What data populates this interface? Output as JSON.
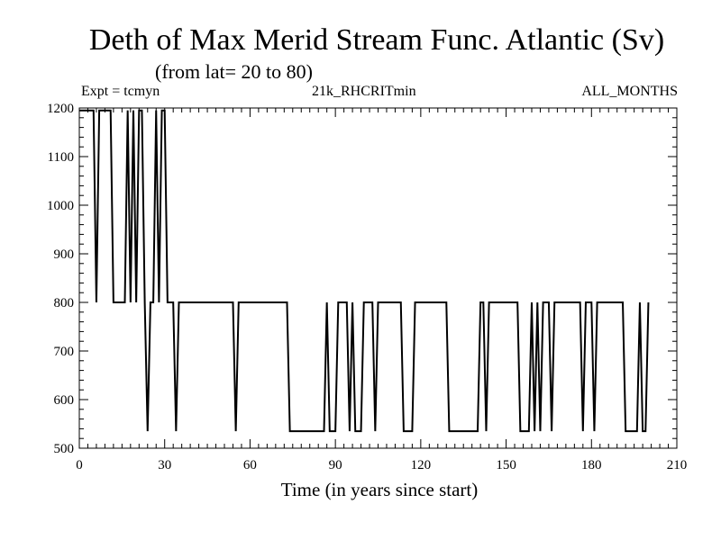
{
  "chart_data": {
    "type": "line",
    "title": "Deth of Max Merid Stream Func. Atlantic (Sv)",
    "subtitle": "(from lat= 20 to 80)",
    "header_left": "Expt = tcmyn",
    "header_center": "21k_RHCRITmin",
    "header_right": "ALL_MONTHS",
    "xlabel": "Time (in years since start)",
    "ylabel": "",
    "xlim": [
      0,
      210
    ],
    "ylim": [
      500,
      1200
    ],
    "xticks": [
      0,
      30,
      60,
      90,
      120,
      150,
      180,
      210
    ],
    "yticks": [
      500,
      600,
      700,
      800,
      900,
      1000,
      1100,
      1200
    ],
    "grid": false,
    "series": [
      {
        "name": "",
        "color": "#000000",
        "points": [
          [
            0,
            1195
          ],
          [
            5,
            1195
          ],
          [
            6,
            800
          ],
          [
            7,
            1195
          ],
          [
            11,
            1195
          ],
          [
            12,
            800
          ],
          [
            16,
            800
          ],
          [
            17,
            1195
          ],
          [
            18,
            800
          ],
          [
            19,
            1195
          ],
          [
            20,
            800
          ],
          [
            21,
            1195
          ],
          [
            22,
            1195
          ],
          [
            23,
            800
          ],
          [
            24,
            535
          ],
          [
            25,
            800
          ],
          [
            26,
            800
          ],
          [
            27,
            1195
          ],
          [
            28,
            800
          ],
          [
            29,
            1195
          ],
          [
            30,
            1195
          ],
          [
            31,
            800
          ],
          [
            33,
            800
          ],
          [
            34,
            535
          ],
          [
            35,
            800
          ],
          [
            54,
            800
          ],
          [
            55,
            535
          ],
          [
            56,
            800
          ],
          [
            73,
            800
          ],
          [
            74,
            535
          ],
          [
            86,
            535
          ],
          [
            87,
            800
          ],
          [
            88,
            535
          ],
          [
            90,
            535
          ],
          [
            91,
            800
          ],
          [
            94,
            800
          ],
          [
            95,
            535
          ],
          [
            96,
            800
          ],
          [
            97,
            535
          ],
          [
            99,
            535
          ],
          [
            100,
            800
          ],
          [
            103,
            800
          ],
          [
            104,
            535
          ],
          [
            105,
            800
          ],
          [
            113,
            800
          ],
          [
            114,
            535
          ],
          [
            117,
            535
          ],
          [
            118,
            800
          ],
          [
            129,
            800
          ],
          [
            130,
            535
          ],
          [
            140,
            535
          ],
          [
            141,
            800
          ],
          [
            142,
            800
          ],
          [
            143,
            535
          ],
          [
            144,
            800
          ],
          [
            154,
            800
          ],
          [
            155,
            535
          ],
          [
            158,
            535
          ],
          [
            159,
            800
          ],
          [
            160,
            535
          ],
          [
            161,
            800
          ],
          [
            162,
            535
          ],
          [
            163,
            800
          ],
          [
            165,
            800
          ],
          [
            166,
            535
          ],
          [
            167,
            800
          ],
          [
            176,
            800
          ],
          [
            177,
            535
          ],
          [
            178,
            800
          ],
          [
            180,
            800
          ],
          [
            181,
            535
          ],
          [
            182,
            800
          ],
          [
            191,
            800
          ],
          [
            192,
            535
          ],
          [
            196,
            535
          ],
          [
            197,
            800
          ],
          [
            198,
            535
          ],
          [
            199,
            535
          ],
          [
            200,
            800
          ]
        ]
      }
    ]
  }
}
